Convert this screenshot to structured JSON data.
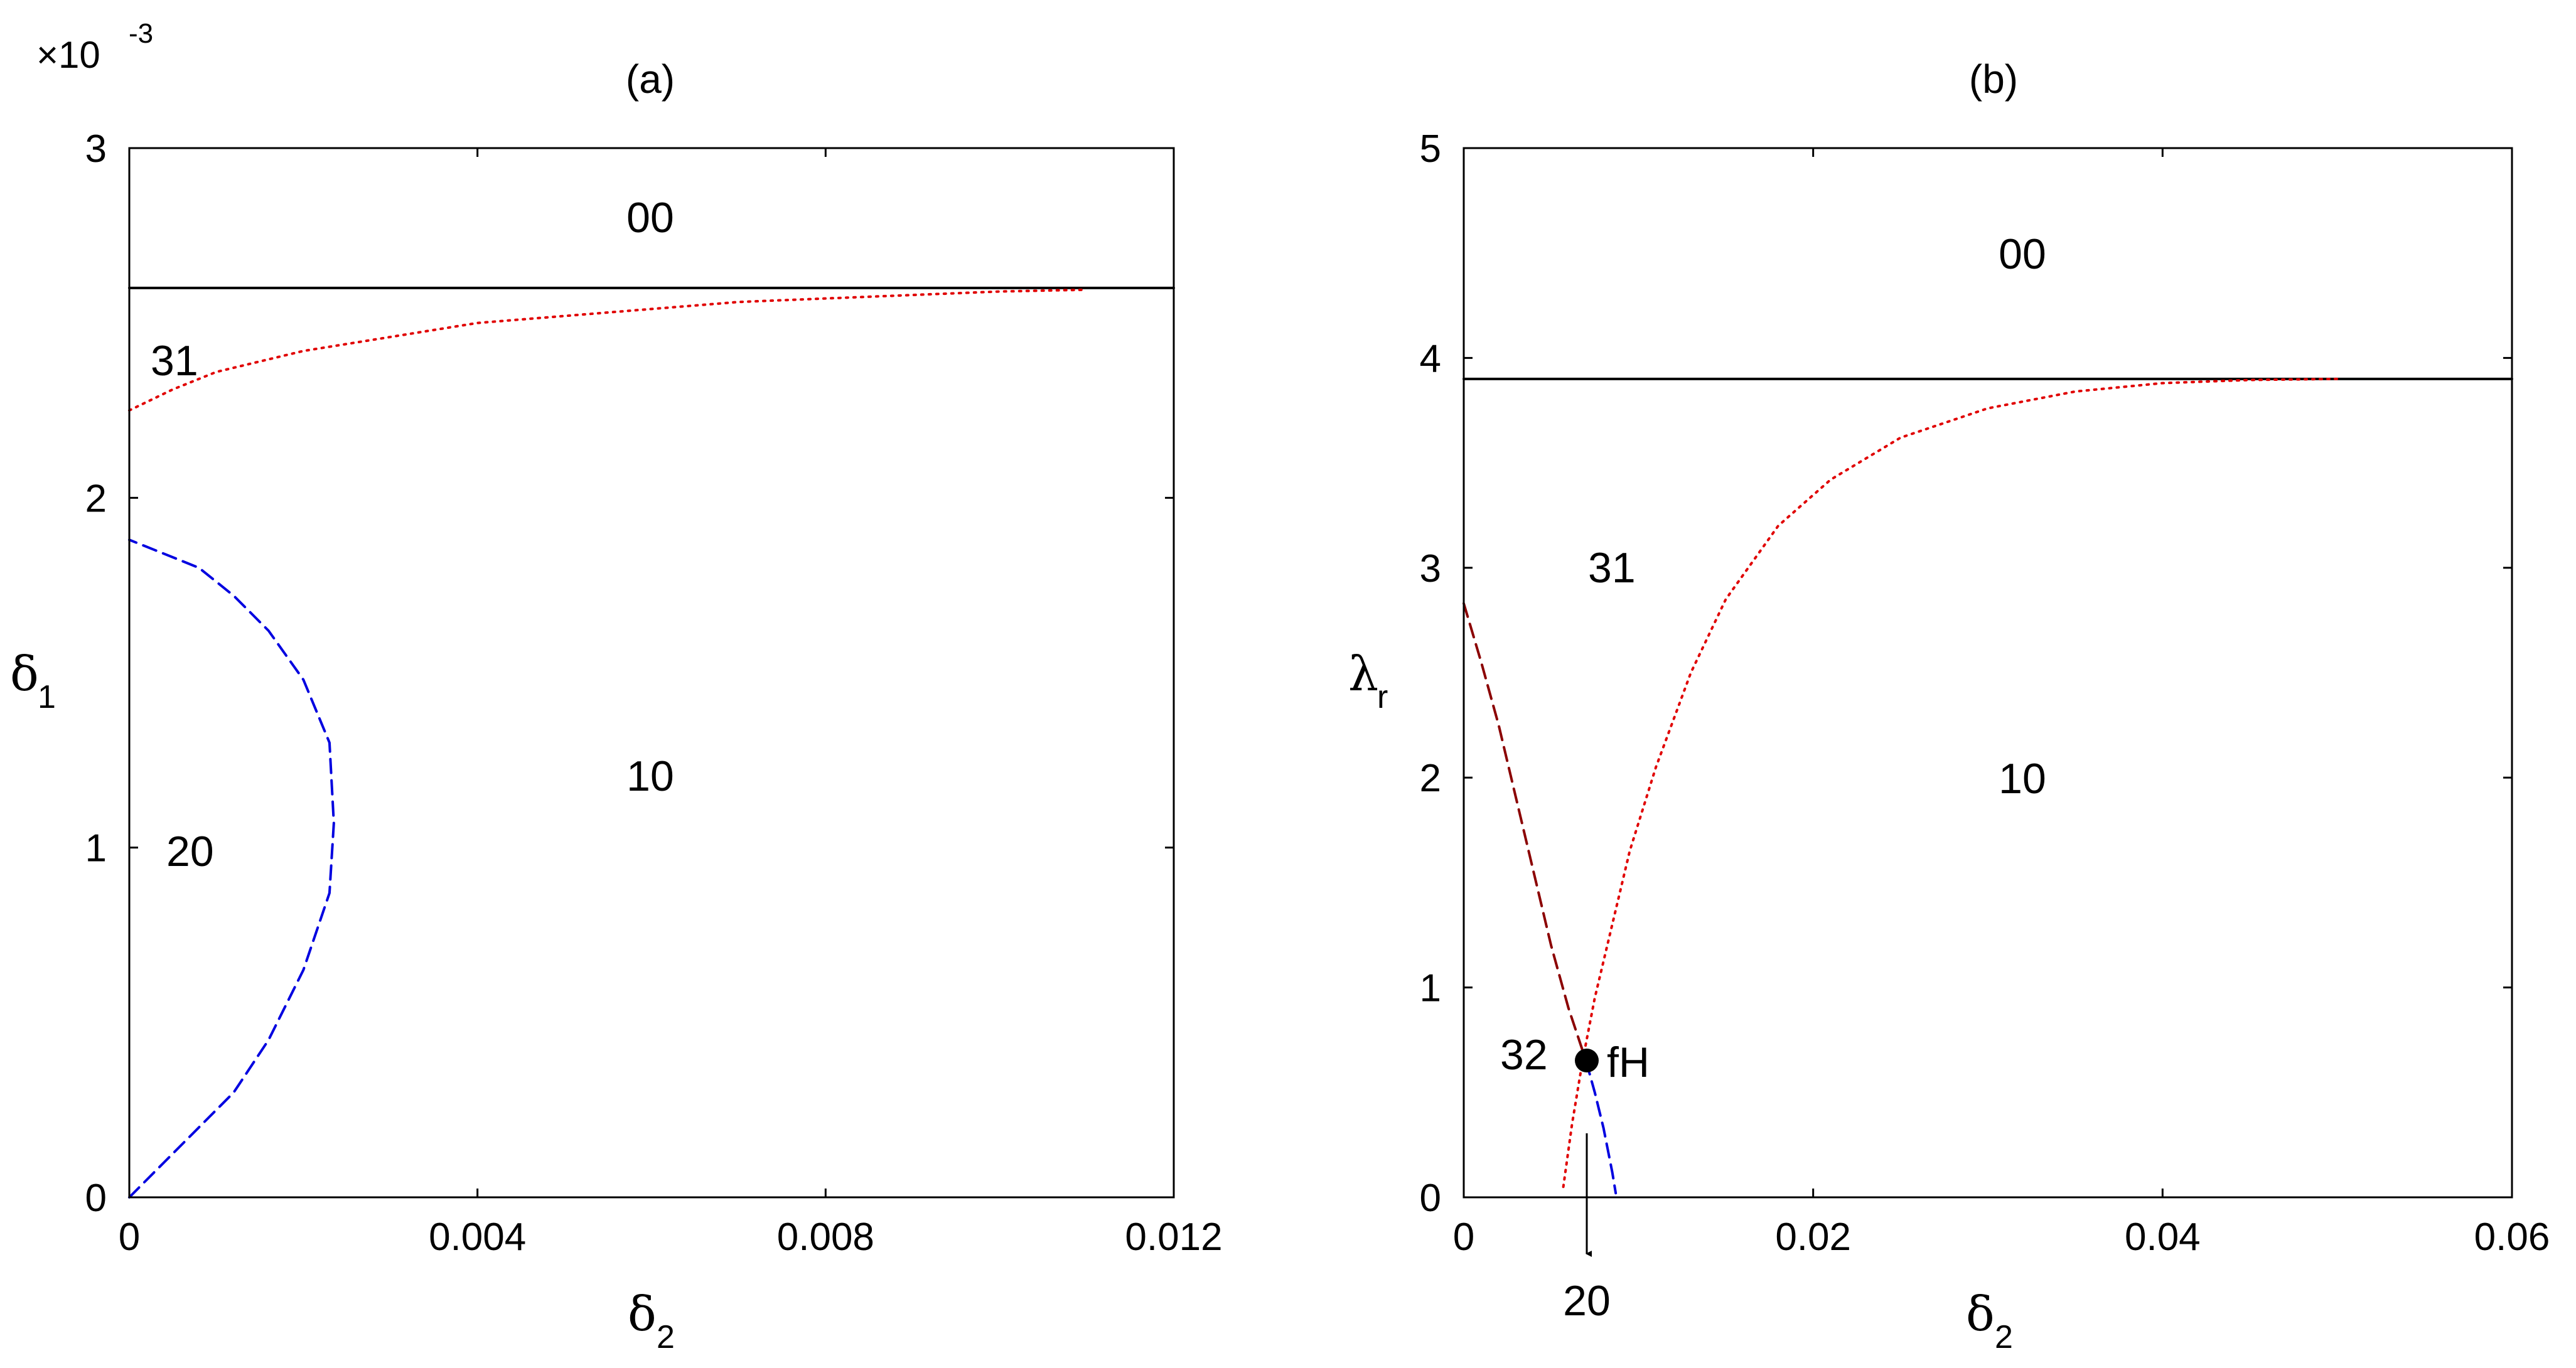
{
  "chart_data": [
    {
      "type": "line",
      "panel": "(a)",
      "title": "(a)",
      "xlabel": "δ",
      "xlabel_sub": "2",
      "ylabel": "δ",
      "ylabel_sub": "1",
      "xlim": [
        0,
        0.012
      ],
      "ylim": [
        0,
        3
      ],
      "y_multiplier": "×10",
      "y_multiplier_exp": "-3",
      "xticks": [
        0,
        0.004,
        0.008,
        0.012
      ],
      "xtick_labels": [
        "0",
        "0.004",
        "0.008",
        "0.012"
      ],
      "yticks": [
        0,
        1,
        2,
        3
      ],
      "ytick_labels": [
        "0",
        "1",
        "2",
        "3"
      ],
      "grid": false,
      "series": [
        {
          "style": "solid",
          "color": "#000000",
          "x": [
            0,
            0.012
          ],
          "y": [
            2.6,
            2.6
          ]
        },
        {
          "style": "dotted",
          "color": "#e00000",
          "x": [
            0,
            0.0005,
            0.001,
            0.002,
            0.003,
            0.004,
            0.005,
            0.006,
            0.007,
            0.008,
            0.009,
            0.01,
            0.011
          ],
          "y": [
            2.25,
            2.31,
            2.36,
            2.42,
            2.46,
            2.5,
            2.52,
            2.54,
            2.56,
            2.57,
            2.58,
            2.59,
            2.595
          ]
        },
        {
          "style": "dashed",
          "color": "#0000e0",
          "x": [
            0,
            0.0004,
            0.0008,
            0.0012,
            0.0016,
            0.002,
            0.0023,
            0.00235,
            0.0023,
            0.002,
            0.0016,
            0.0012,
            0.0008,
            0.0003,
            0
          ],
          "y": [
            0,
            0.1,
            0.2,
            0.3,
            0.45,
            0.65,
            0.87,
            1.07,
            1.3,
            1.48,
            1.62,
            1.72,
            1.8,
            1.85,
            1.88
          ]
        }
      ],
      "annotations": [
        "00",
        "31",
        "10",
        "20"
      ]
    },
    {
      "type": "line",
      "panel": "(b)",
      "title": "(b)",
      "xlabel": "δ",
      "xlabel_sub": "2",
      "ylabel": "λ",
      "ylabel_sub": "r",
      "xlim": [
        0,
        0.06
      ],
      "ylim": [
        0,
        5
      ],
      "xticks": [
        0,
        0.02,
        0.04,
        0.06
      ],
      "xtick_labels": [
        "0",
        "0.02",
        "0.04",
        "0.06"
      ],
      "yticks": [
        0,
        1,
        2,
        3,
        4,
        5
      ],
      "ytick_labels": [
        "0",
        "1",
        "2",
        "3",
        "4",
        "5"
      ],
      "grid": false,
      "series": [
        {
          "style": "solid",
          "color": "#000000",
          "x": [
            0,
            0.06
          ],
          "y": [
            3.9,
            3.9
          ]
        },
        {
          "style": "dotted",
          "color": "#e00000",
          "x": [
            0.0057,
            0.0062,
            0.0068,
            0.0075,
            0.0085,
            0.0095,
            0.011,
            0.013,
            0.015,
            0.018,
            0.021,
            0.025,
            0.03,
            0.035,
            0.04,
            0.045,
            0.05
          ],
          "y": [
            0.05,
            0.35,
            0.65,
            0.95,
            1.3,
            1.65,
            2.05,
            2.5,
            2.85,
            3.2,
            3.42,
            3.62,
            3.76,
            3.84,
            3.88,
            3.895,
            3.9
          ]
        },
        {
          "style": "dashed",
          "color": "#8b0000",
          "x": [
            0,
            0.001,
            0.002,
            0.003,
            0.004,
            0.005,
            0.006,
            0.007
          ],
          "y": [
            2.83,
            2.55,
            2.25,
            1.9,
            1.55,
            1.2,
            0.9,
            0.65
          ]
        },
        {
          "style": "dashed",
          "color": "#0000e0",
          "x": [
            0.007,
            0.0075,
            0.008,
            0.0085,
            0.0087
          ],
          "y": [
            0.65,
            0.5,
            0.33,
            0.12,
            0.02
          ]
        }
      ],
      "point": {
        "x": 0.007,
        "y": 0.65,
        "label": "fH"
      },
      "arrow_label": "20",
      "annotations": [
        "00",
        "31",
        "10",
        "32"
      ]
    }
  ]
}
